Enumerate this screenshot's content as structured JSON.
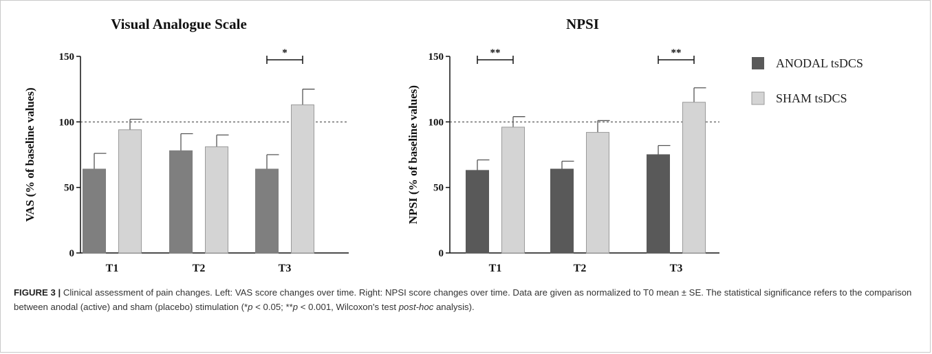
{
  "chart_data": [
    {
      "type": "bar",
      "title": "Visual Analogue Scale",
      "ylabel": "VAS (% of baseline values)",
      "xlabel": "",
      "categories": [
        "T1",
        "T2",
        "T3"
      ],
      "ylim": [
        0,
        150
      ],
      "yticks": [
        0,
        50,
        100,
        150
      ],
      "reference_line": 100,
      "series": [
        {
          "name": "ANODAL tsDCS",
          "color": "#7f7f7f",
          "values": [
            64,
            78,
            64
          ],
          "errors": [
            12,
            13,
            11
          ]
        },
        {
          "name": "SHAM tsDCS",
          "color": "#d4d4d4",
          "values": [
            94,
            81,
            113
          ],
          "errors": [
            8,
            9,
            12
          ]
        }
      ],
      "significance": [
        {
          "category_index": 2,
          "label": "*"
        }
      ]
    },
    {
      "type": "bar",
      "title": "NPSI",
      "ylabel": "NPSI (% of baseline values)",
      "xlabel": "",
      "categories": [
        "T1",
        "T2",
        "T3"
      ],
      "ylim": [
        0,
        150
      ],
      "yticks": [
        0,
        50,
        100,
        150
      ],
      "reference_line": 100,
      "series": [
        {
          "name": "ANODAL tsDCS",
          "color": "#595959",
          "values": [
            63,
            64,
            75
          ],
          "errors": [
            8,
            6,
            7
          ]
        },
        {
          "name": "SHAM tsDCS",
          "color": "#d4d4d4",
          "values": [
            96,
            92,
            115
          ],
          "errors": [
            8,
            9,
            11
          ]
        }
      ],
      "significance": [
        {
          "category_index": 0,
          "label": "**"
        },
        {
          "category_index": 2,
          "label": "**"
        }
      ]
    }
  ],
  "legend": {
    "items": [
      {
        "label": "ANODAL tsDCS",
        "color": "#595959"
      },
      {
        "label": "SHAM tsDCS",
        "color": "#d4d4d4"
      }
    ]
  },
  "caption": {
    "figure_label": "FIGURE 3 |",
    "part1": " Clinical assessment of pain changes. Left: VAS score changes over time. Right: NPSI score changes over time. Data are given as normalized to T0 mean ± SE. The statistical significance refers to the comparison between anodal (active) and sham (placebo) stimulation (*",
    "p1": "p",
    "part2": " < 0.05; **",
    "p2": "p",
    "part3": " < 0.001, Wilcoxon's test ",
    "posthoc": "post-hoc",
    "part4": " analysis)."
  }
}
